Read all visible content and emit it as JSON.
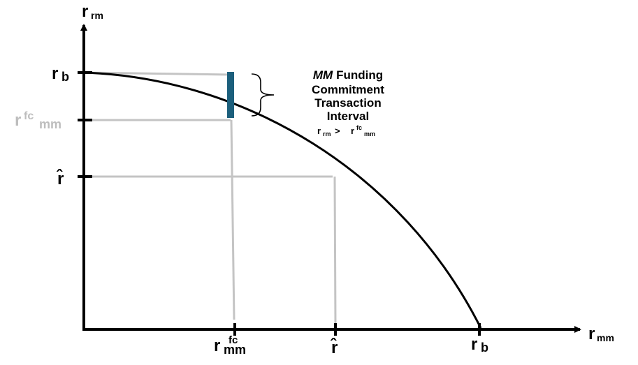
{
  "y_axis": {
    "label": {
      "base": "r",
      "sub": "rm"
    }
  },
  "x_axis": {
    "label": {
      "base": "r",
      "sub": "mm"
    }
  },
  "y_ticks": [
    {
      "base": "r",
      "sub": "b"
    },
    {
      "base": "r",
      "sup": "fc",
      "sub": "mm"
    },
    {
      "base": "r̂"
    }
  ],
  "x_ticks": [
    {
      "base": "r",
      "sup": "fc",
      "sub": "mm"
    },
    {
      "base": "r̂"
    },
    {
      "base": "r",
      "sub": "b"
    }
  ],
  "annotation": {
    "first_line": {
      "emphasis": "MM",
      "text": "Funding"
    },
    "lines": [
      "Commitment",
      "Transaction",
      "Interval"
    ],
    "condition": {
      "left": {
        "base": "r",
        "sub": "rm"
      },
      "operator": ">",
      "right": {
        "base": "r",
        "sup": "fc",
        "sub": "mm"
      }
    }
  }
}
